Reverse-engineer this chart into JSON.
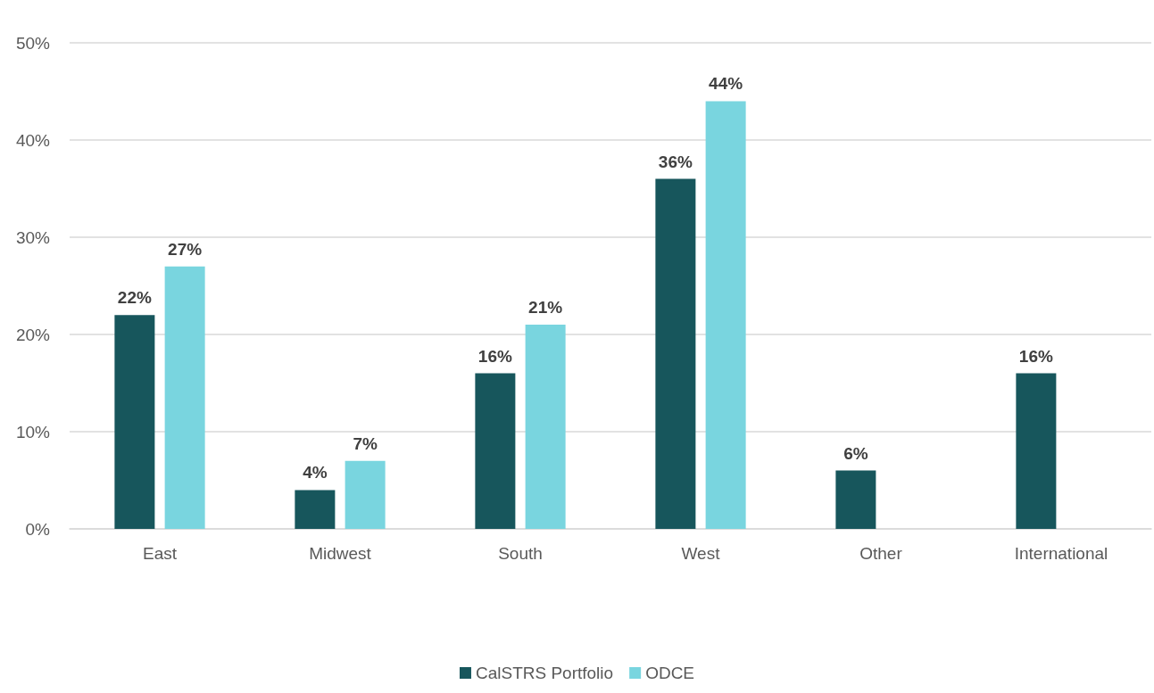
{
  "chart_data": {
    "type": "bar",
    "categories": [
      "East",
      "Midwest",
      "South",
      "West",
      "Other",
      "International"
    ],
    "series": [
      {
        "name": "CalSTRS Portfolio",
        "color": "#17565c",
        "values": [
          22,
          4,
          16,
          36,
          6,
          16
        ],
        "value_labels": [
          "22%",
          "4%",
          "16%",
          "36%",
          "6%",
          "16%"
        ]
      },
      {
        "name": "ODCE",
        "color": "#79d5df",
        "values": [
          27,
          7,
          21,
          44,
          null,
          null
        ],
        "value_labels": [
          "27%",
          "7%",
          "21%",
          "44%",
          null,
          null
        ]
      }
    ],
    "ylim": [
      0,
      50
    ],
    "yticks": [
      {
        "value": 0,
        "label": "0%"
      },
      {
        "value": 10,
        "label": "10%"
      },
      {
        "value": 20,
        "label": "20%"
      },
      {
        "value": 30,
        "label": "30%"
      },
      {
        "value": 40,
        "label": "40%"
      },
      {
        "value": 50,
        "label": "50%"
      }
    ],
    "grid": "y",
    "legend": "bottom"
  }
}
